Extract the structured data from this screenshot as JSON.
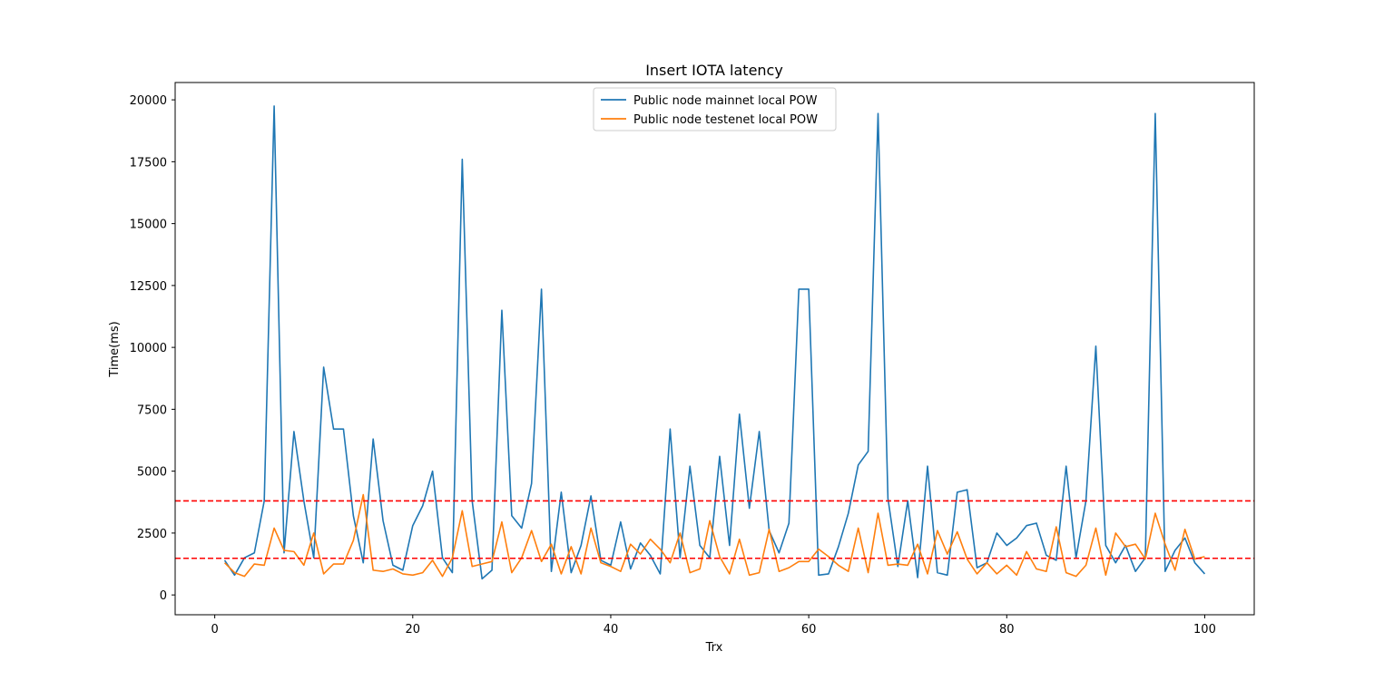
{
  "chart_data": {
    "type": "line",
    "title": "Insert IOTA latency",
    "xlabel": "Trx",
    "ylabel": "Time(ms)",
    "xlim": [
      -4,
      105
    ],
    "ylim": [
      -800,
      20700
    ],
    "xticks": [
      0,
      20,
      40,
      60,
      80,
      100
    ],
    "yticks": [
      0,
      2500,
      5000,
      7500,
      10000,
      12500,
      15000,
      17500,
      20000
    ],
    "grid": false,
    "legend_position": "top-center",
    "x": [
      1,
      2,
      3,
      4,
      5,
      6,
      7,
      8,
      9,
      10,
      11,
      12,
      13,
      14,
      15,
      16,
      17,
      18,
      19,
      20,
      21,
      22,
      23,
      24,
      25,
      26,
      27,
      28,
      29,
      30,
      31,
      32,
      33,
      34,
      35,
      36,
      37,
      38,
      39,
      40,
      41,
      42,
      43,
      44,
      45,
      46,
      47,
      48,
      49,
      50,
      51,
      52,
      53,
      54,
      55,
      56,
      57,
      58,
      59,
      60,
      61,
      62,
      63,
      64,
      65,
      66,
      67,
      68,
      69,
      70,
      71,
      72,
      73,
      74,
      75,
      76,
      77,
      78,
      79,
      80,
      81,
      82,
      83,
      84,
      85,
      86,
      87,
      88,
      89,
      90,
      91,
      92,
      93,
      94,
      95,
      96,
      97,
      98,
      99,
      100
    ],
    "series": [
      {
        "name": "Public node mainnet local POW",
        "color": "#1f77b4",
        "values": [
          1400,
          800,
          1500,
          1700,
          3800,
          19750,
          1700,
          6600,
          3800,
          1500,
          9200,
          6700,
          6700,
          3200,
          1300,
          6300,
          3000,
          1200,
          1000,
          2800,
          3600,
          5000,
          1500,
          900,
          17600,
          3800,
          650,
          1000,
          11500,
          3200,
          2700,
          4500,
          12350,
          950,
          4150,
          900,
          2000,
          4000,
          1400,
          1200,
          2950,
          1050,
          2100,
          1600,
          850,
          6700,
          1500,
          5200,
          2000,
          1500,
          5600,
          2000,
          7300,
          3500,
          6600,
          2600,
          1700,
          2900,
          12350,
          12350,
          800,
          850,
          1950,
          3300,
          5250,
          5800,
          19450,
          3900,
          1150,
          3800,
          700,
          5200,
          900,
          800,
          4150,
          4250,
          1100,
          1300,
          2500,
          2000,
          2300,
          2800,
          2900,
          1600,
          1400,
          5200,
          1500,
          3800,
          10050,
          2000,
          1300,
          2000,
          950,
          1500,
          19450,
          950,
          1800,
          2300,
          1300,
          850
        ]
      },
      {
        "name": "Public node testenet local POW",
        "color": "#ff7f0e",
        "values": [
          1300,
          900,
          750,
          1250,
          1200,
          2700,
          1800,
          1750,
          1200,
          2500,
          850,
          1250,
          1250,
          2200,
          4050,
          1000,
          950,
          1050,
          850,
          800,
          900,
          1400,
          750,
          1500,
          3400,
          1150,
          1250,
          1350,
          2950,
          900,
          1500,
          2600,
          1350,
          2050,
          850,
          1950,
          850,
          2700,
          1300,
          1150,
          950,
          2050,
          1650,
          2250,
          1850,
          1300,
          2500,
          900,
          1050,
          3000,
          1550,
          850,
          2250,
          800,
          900,
          2650,
          950,
          1100,
          1350,
          1350,
          1850,
          1550,
          1200,
          950,
          2700,
          900,
          3300,
          1200,
          1250,
          1200,
          2050,
          850,
          2600,
          1650,
          2550,
          1450,
          850,
          1300,
          850,
          1200,
          800,
          1750,
          1050,
          950,
          2750,
          900,
          750,
          1200,
          2700,
          800,
          2500,
          1950,
          2050,
          1450,
          3300,
          2050,
          1000,
          2650,
          1450,
          1550
        ]
      }
    ],
    "hlines": [
      {
        "y": 3800,
        "color": "#ff0000",
        "style": "dashed"
      },
      {
        "y": 1480,
        "color": "#ff0000",
        "style": "dashed"
      }
    ]
  }
}
